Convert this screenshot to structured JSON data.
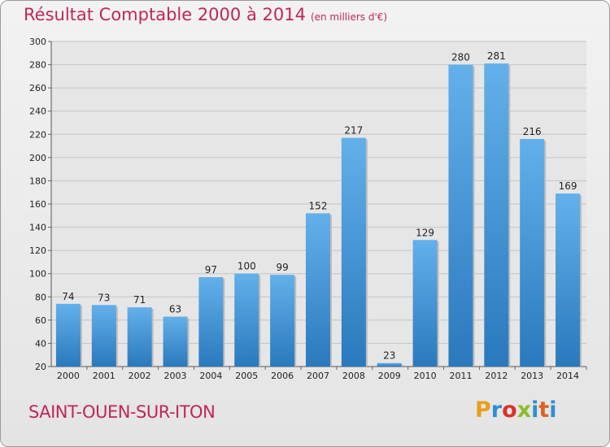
{
  "header": {
    "title": "Résultat Comptable 2000 à 2014",
    "subtitle": "(en milliers d'€)"
  },
  "footer": {
    "city": "SAINT-OUEN-SUR-ITON",
    "logo": "Proxiti"
  },
  "colors": {
    "title": "#c0265a",
    "bar_light": "#63b0ea",
    "bar_dark": "#2a79bd",
    "logo_letters": [
      "#e8a020",
      "#2a8fd6",
      "#d8332b",
      "#8cbd2a",
      "#2a8fd6",
      "#e06020",
      "#2a8fd6"
    ]
  },
  "chart_data": {
    "type": "bar",
    "categories": [
      "2000",
      "2001",
      "2002",
      "2003",
      "2004",
      "2005",
      "2006",
      "2007",
      "2008",
      "2009",
      "2010",
      "2011",
      "2012",
      "2013",
      "2014"
    ],
    "values": [
      74,
      73,
      71,
      63,
      97,
      100,
      99,
      152,
      217,
      23,
      129,
      280,
      281,
      216,
      169
    ],
    "ylim": [
      20,
      300
    ],
    "yticks": [
      20,
      40,
      60,
      80,
      100,
      120,
      140,
      160,
      180,
      200,
      220,
      240,
      260,
      280,
      300
    ],
    "grid": true,
    "xlabel": "",
    "ylabel": ""
  }
}
